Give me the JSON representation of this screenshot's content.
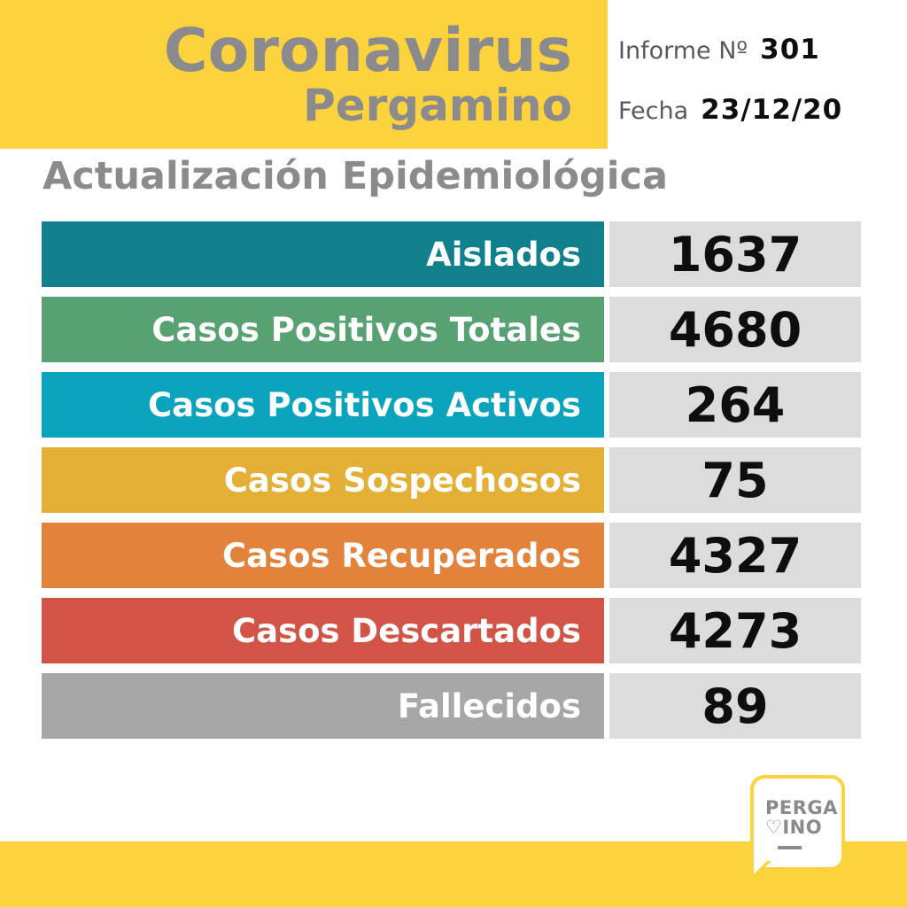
{
  "header": {
    "title": "Coronavirus",
    "subtitle": "Pergamino",
    "report_label": "Informe Nº",
    "report_number": "301",
    "date_label": "Fecha",
    "date_value": "23/12/20"
  },
  "section_title": "Actualización Epidemiológica",
  "stats": [
    {
      "label": "Aislados",
      "value": "1637",
      "color": "#10808D"
    },
    {
      "label": "Casos Positivos Totales",
      "value": "4680",
      "color": "#57A172"
    },
    {
      "label": "Casos Positivos Activos",
      "value": "264",
      "color": "#0AA3BD"
    },
    {
      "label": "Casos Sospechosos",
      "value": "75",
      "color": "#E3B035"
    },
    {
      "label": "Casos Recuperados",
      "value": "4327",
      "color": "#E2823B"
    },
    {
      "label": "Casos Descartados",
      "value": "4273",
      "color": "#D15446"
    },
    {
      "label": "Fallecidos",
      "value": "89",
      "color": "#A7A7A7"
    }
  ],
  "logo": {
    "line1": "PERGA",
    "heart": "♡",
    "line2": "INO"
  },
  "colors": {
    "brand_yellow": "#FCD23D",
    "panel_gray": "#DCDCDC",
    "title_gray": "#8B8B8B",
    "meta_gray": "#59595B",
    "ink_black": "#0E0E0E",
    "logo_gray": "#8A8A8A"
  },
  "chart_data": {
    "type": "table",
    "title": "Actualización Epidemiológica",
    "subtitle": "Coronavirus Pergamino — Informe Nº 301 — Fecha 23/12/20",
    "categories": [
      "Aislados",
      "Casos Positivos Totales",
      "Casos Positivos Activos",
      "Casos Sospechosos",
      "Casos Recuperados",
      "Casos Descartados",
      "Fallecidos"
    ],
    "values": [
      1637,
      4680,
      264,
      75,
      4327,
      4273,
      89
    ],
    "row_colors": [
      "#10808D",
      "#57A172",
      "#0AA3BD",
      "#E3B035",
      "#E2823B",
      "#D15446",
      "#A7A7A7"
    ],
    "legend_position": "none",
    "grid": false
  }
}
